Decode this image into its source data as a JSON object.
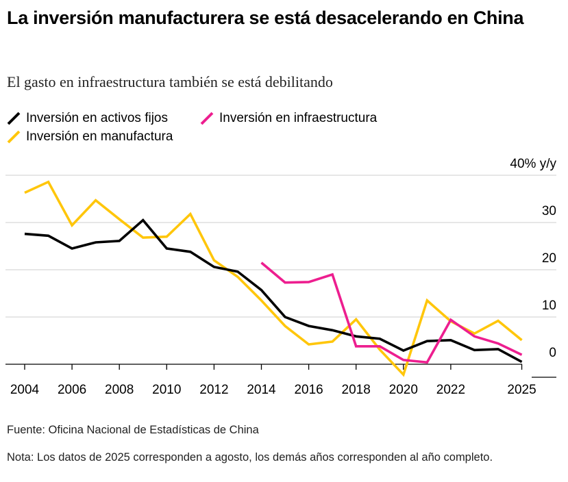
{
  "title": "La inversión manufacturera se está desacelerando en China",
  "subtitle": "El gasto en infraestructura también se está debilitando",
  "source": "Fuente: Oficina Nacional de Estadísticas de China",
  "note": "Nota: Los datos de 2025 corresponden a agosto, los demás años corresponden al año completo.",
  "legend": [
    {
      "label": "Inversión en activos fijos",
      "color": "#000000"
    },
    {
      "label": "Inversión en infraestructura",
      "color": "#ed1e8f"
    },
    {
      "label": "Inversión en manufactura",
      "color": "#ffc60b"
    }
  ],
  "chart_data": {
    "type": "line",
    "y_unit_label": "40% y/y",
    "ylim": [
      -2,
      40
    ],
    "grid": true,
    "y_ticks": [
      {
        "value": 40,
        "label": "40% y/y"
      },
      {
        "value": 30,
        "label": "30"
      },
      {
        "value": 20,
        "label": "20"
      },
      {
        "value": 10,
        "label": "10"
      },
      {
        "value": 0,
        "label": "0"
      }
    ],
    "x_ticks": [
      "2004",
      "2006",
      "2008",
      "2010",
      "2012",
      "2014",
      "2016",
      "2018",
      "2020",
      "2022",
      "2025"
    ],
    "series": [
      {
        "name": "Inversión en activos fijos",
        "color": "#000000",
        "x": [
          "2004",
          "2005",
          "2006",
          "2007",
          "2008",
          "2009",
          "2010",
          "2011",
          "2012",
          "2013",
          "2014",
          "2015",
          "2016",
          "2017",
          "2018",
          "2019",
          "2020",
          "2021",
          "2022",
          "2023",
          "2024",
          "2025"
        ],
        "values": [
          27.6,
          27.2,
          24.5,
          25.8,
          26.1,
          30.5,
          24.5,
          23.8,
          20.6,
          19.6,
          15.7,
          10.0,
          8.1,
          7.2,
          5.9,
          5.4,
          2.9,
          4.9,
          5.1,
          3.0,
          3.2,
          0.5
        ]
      },
      {
        "name": "Inversión en infraestructura",
        "color": "#ed1e8f",
        "x": [
          "2014",
          "2015",
          "2016",
          "2017",
          "2018",
          "2019",
          "2020",
          "2021",
          "2022",
          "2023",
          "2024",
          "2025"
        ],
        "values": [
          21.5,
          17.3,
          17.4,
          19.0,
          3.8,
          3.8,
          0.9,
          0.4,
          9.4,
          5.9,
          4.4,
          2.0
        ]
      },
      {
        "name": "Inversión en manufactura",
        "color": "#ffc60b",
        "x": [
          "2004",
          "2005",
          "2006",
          "2007",
          "2008",
          "2009",
          "2010",
          "2011",
          "2012",
          "2013",
          "2014",
          "2015",
          "2016",
          "2017",
          "2018",
          "2019",
          "2020",
          "2021",
          "2022",
          "2023",
          "2024",
          "2025"
        ],
        "values": [
          36.3,
          38.6,
          29.4,
          34.7,
          30.7,
          26.8,
          27.0,
          31.8,
          22.0,
          18.5,
          13.5,
          8.1,
          4.2,
          4.8,
          9.5,
          3.1,
          -2.2,
          13.5,
          9.1,
          6.5,
          9.2,
          5.1
        ]
      }
    ]
  }
}
